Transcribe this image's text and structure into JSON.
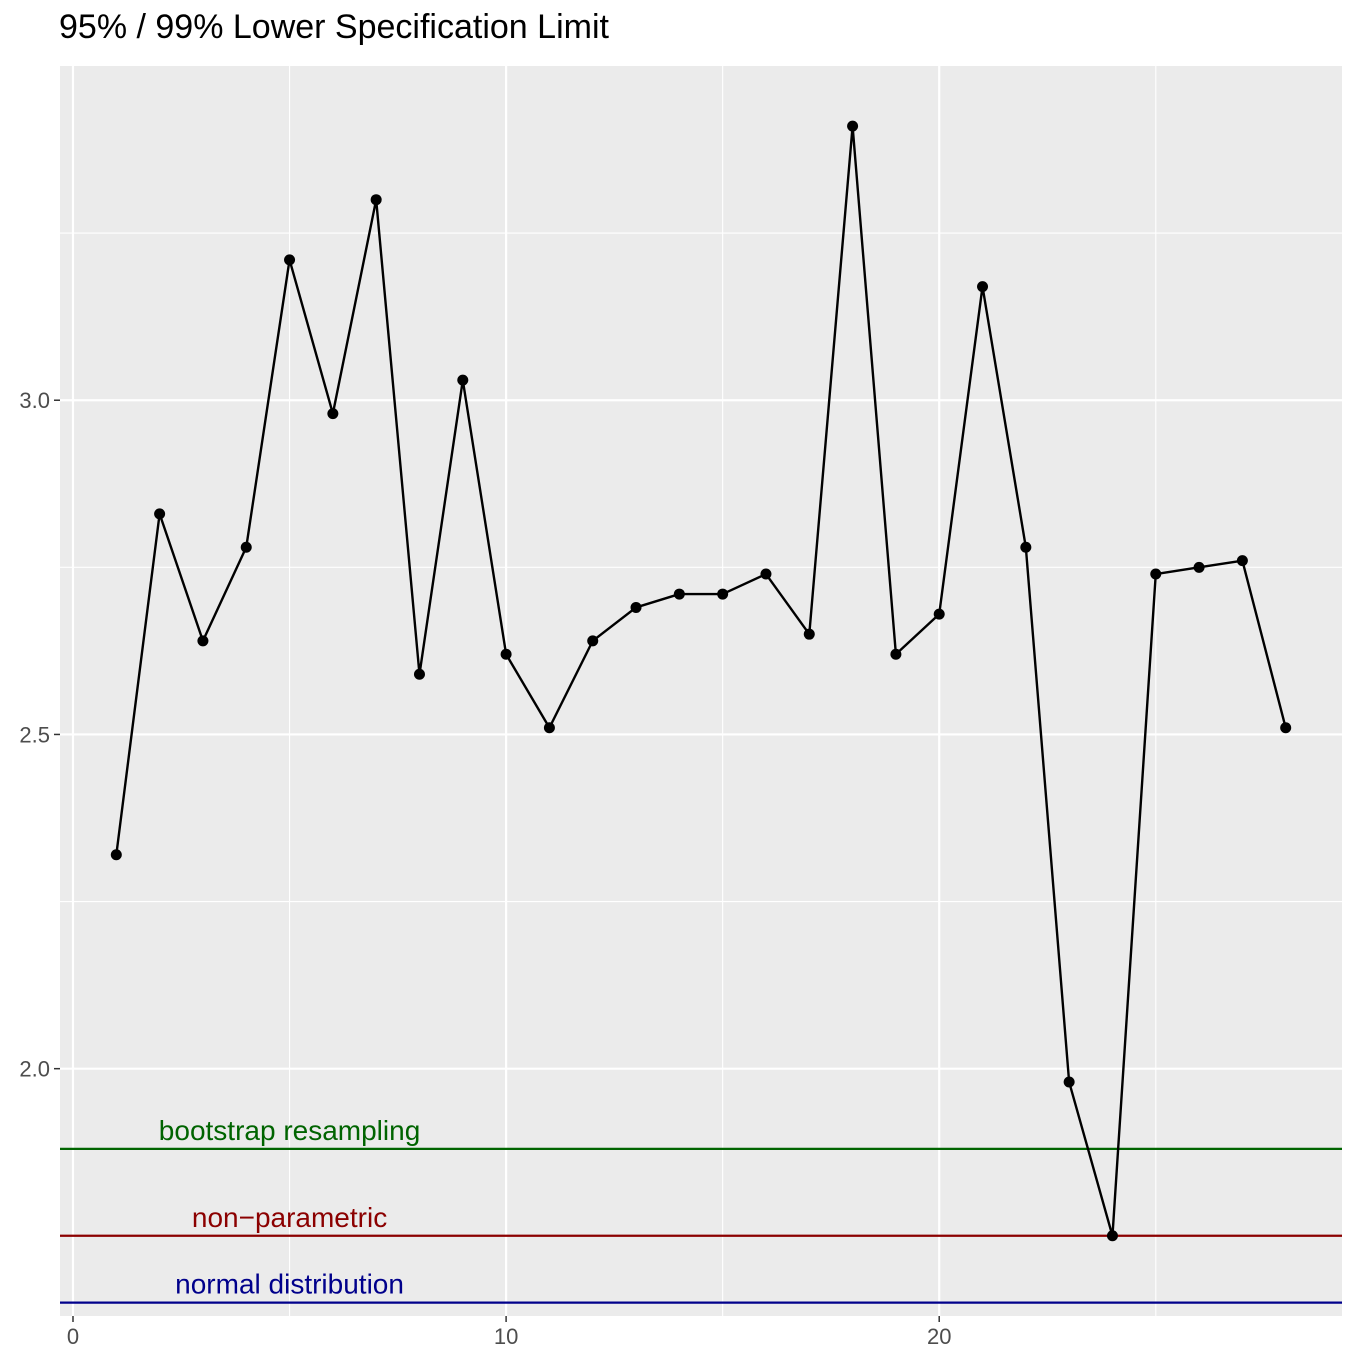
{
  "chart_data": {
    "type": "line",
    "title": "95% / 99% Lower Specification Limit",
    "xlabel": "",
    "ylabel": "",
    "xlim": [
      -0.3,
      29.3
    ],
    "ylim": [
      1.63,
      3.5
    ],
    "x_ticks": [
      0,
      10,
      20
    ],
    "x_tick_labels": [
      "0",
      "10",
      "20"
    ],
    "y_ticks": [
      2.0,
      2.5,
      3.0
    ],
    "y_tick_labels": [
      "2.0",
      "2.5",
      "3.0"
    ],
    "grid": true,
    "series": [
      {
        "x": [
          1,
          2,
          3,
          4,
          5,
          6,
          7,
          8,
          9,
          10,
          11,
          12,
          13,
          14,
          15,
          16,
          17,
          18,
          19,
          20,
          21,
          22,
          23,
          24,
          25,
          26,
          27,
          28
        ],
        "y": [
          2.32,
          2.83,
          2.64,
          2.78,
          3.21,
          2.98,
          3.3,
          2.59,
          3.03,
          2.62,
          2.51,
          2.64,
          2.69,
          2.71,
          2.71,
          2.74,
          2.65,
          3.41,
          2.62,
          2.68,
          3.17,
          2.78,
          1.98,
          1.75,
          2.74,
          2.75,
          2.76,
          2.51
        ],
        "color": "#000000"
      }
    ],
    "reference_lines": [
      {
        "label": "bootstrap resampling",
        "y": 1.88,
        "color": "#006400"
      },
      {
        "label": "non−parametric",
        "y": 1.75,
        "color": "#8b0000"
      },
      {
        "label": "normal distribution",
        "y": 1.65,
        "color": "#00008b"
      }
    ]
  },
  "colors": {
    "panel_background": "#ebebeb",
    "grid": "#ffffff",
    "axis_text": "#4d4d4d"
  }
}
